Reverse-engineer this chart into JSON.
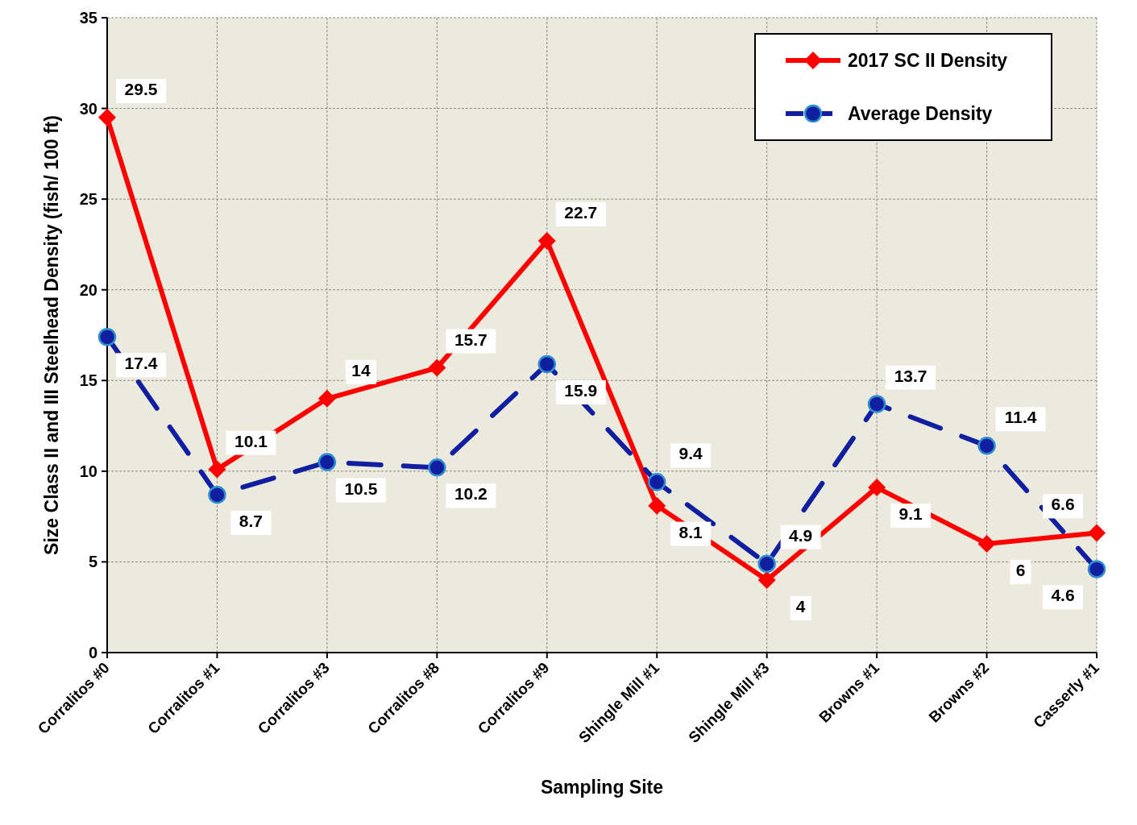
{
  "chart_data": {
    "type": "line",
    "xlabel": "Sampling Site",
    "ylabel": "Size Class II and III Steelhead Density (fish/ 100 ft)",
    "categories": [
      "Corralitos #0",
      "Corralitos #1",
      "Corralitos #3",
      "Corralitos #8",
      "Corralitos #9",
      "Shingle Mill #1",
      "Shingle Mill #3",
      "Browns #1",
      "Browns #2",
      "Casserly #1"
    ],
    "ylim": [
      0,
      35
    ],
    "yticks": [
      0,
      5,
      10,
      15,
      20,
      25,
      30,
      35
    ],
    "grid": true,
    "legend": "top right",
    "data_labels": true,
    "series": [
      {
        "name": "2017 SC II Density",
        "color": "#ff0000",
        "marker": "diamond",
        "line_style": "solid",
        "values": [
          29.5,
          10.1,
          14,
          15.7,
          22.7,
          8.1,
          4,
          9.1,
          6,
          6.6
        ]
      },
      {
        "name": "Average Density",
        "color": "#0f1fa0",
        "marker": "circle",
        "line_style": "dashed",
        "values": [
          17.4,
          8.7,
          10.5,
          10.2,
          15.9,
          9.4,
          4.9,
          13.7,
          11.4,
          4.6
        ]
      }
    ]
  }
}
